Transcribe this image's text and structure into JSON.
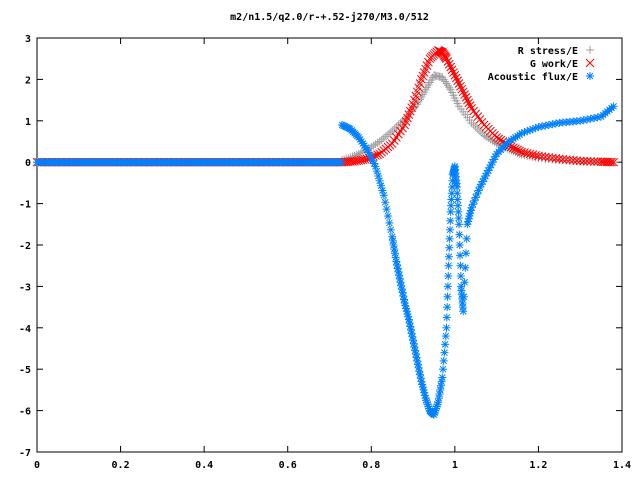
{
  "chart_data": {
    "type": "scatter",
    "title": "m2/n1.5/q2.0/r-+.52-j270/M3.0/512",
    "xlim": [
      0,
      1.4
    ],
    "ylim": [
      -7,
      3
    ],
    "x_ticks": [
      0,
      0.2,
      0.4,
      0.6,
      0.8,
      1,
      1.2,
      1.4
    ],
    "x_tick_labels": [
      "0",
      "0.2",
      "0.4",
      "0.6",
      "0.8",
      "1",
      "1.2",
      "1.4"
    ],
    "y_ticks": [
      -7,
      -6,
      -5,
      -4,
      -3,
      -2,
      -1,
      0,
      1,
      2,
      3
    ],
    "y_tick_labels": [
      "-7",
      "-6",
      "-5",
      "-4",
      "-3",
      "-2",
      "-1",
      "0",
      "1",
      "2",
      "3"
    ],
    "grid": false,
    "legend_position": "top-right",
    "series": [
      {
        "name": "R stress/E",
        "marker": "+",
        "color": "#a0a0a0",
        "x": [
          0.73,
          0.76,
          0.79,
          0.82,
          0.85,
          0.88,
          0.91,
          0.93,
          0.95,
          0.97,
          0.99,
          1.01,
          1.04,
          1.07,
          1.1,
          1.13,
          1.16,
          1.2,
          1.25,
          1.3,
          1.35,
          1.38
        ],
        "y": [
          0.05,
          0.15,
          0.3,
          0.5,
          0.75,
          1.05,
          1.4,
          1.75,
          2.1,
          2.05,
          1.75,
          1.35,
          0.95,
          0.65,
          0.45,
          0.3,
          0.18,
          0.1,
          0.05,
          0.02,
          0.01,
          0.0
        ]
      },
      {
        "name": "G work/E",
        "marker": "x",
        "color": "#ff0000",
        "x": [
          0.73,
          0.76,
          0.79,
          0.82,
          0.85,
          0.88,
          0.9,
          0.92,
          0.94,
          0.96,
          0.97,
          0.98,
          1.0,
          1.02,
          1.04,
          1.07,
          1.1,
          1.13,
          1.16,
          1.2,
          1.25,
          1.3,
          1.35,
          1.38
        ],
        "y": [
          0.0,
          0.02,
          0.08,
          0.2,
          0.45,
          0.9,
          1.4,
          2.0,
          2.5,
          2.7,
          2.65,
          2.5,
          2.1,
          1.7,
          1.3,
          0.9,
          0.6,
          0.4,
          0.25,
          0.15,
          0.08,
          0.03,
          0.01,
          0.0
        ]
      },
      {
        "name": "Acoustic flux/E",
        "marker": "*",
        "color": "#0080ff",
        "x": [
          0.73,
          0.75,
          0.77,
          0.79,
          0.81,
          0.83,
          0.85,
          0.86,
          0.87,
          0.88,
          0.89,
          0.9,
          0.91,
          0.92,
          0.93,
          0.94,
          0.95,
          0.96,
          0.97,
          0.98,
          0.985,
          0.99,
          0.995,
          1.0,
          1.005,
          1.01,
          1.015,
          1.02,
          1.03,
          1.04,
          1.06,
          1.08,
          1.1,
          1.13,
          1.16,
          1.2,
          1.25,
          1.3,
          1.35,
          1.38
        ],
        "y": [
          0.9,
          0.8,
          0.6,
          0.3,
          -0.1,
          -0.8,
          -1.8,
          -2.4,
          -2.9,
          -3.4,
          -3.8,
          -4.3,
          -4.8,
          -5.3,
          -5.7,
          -6.0,
          -6.1,
          -5.8,
          -5.2,
          -4.0,
          -2.5,
          -1.2,
          -0.3,
          -0.1,
          -0.6,
          -1.5,
          -3.0,
          -3.6,
          -1.5,
          -1.1,
          -0.6,
          -0.2,
          0.2,
          0.5,
          0.7,
          0.85,
          0.95,
          1.0,
          1.1,
          1.35
        ]
      }
    ]
  }
}
